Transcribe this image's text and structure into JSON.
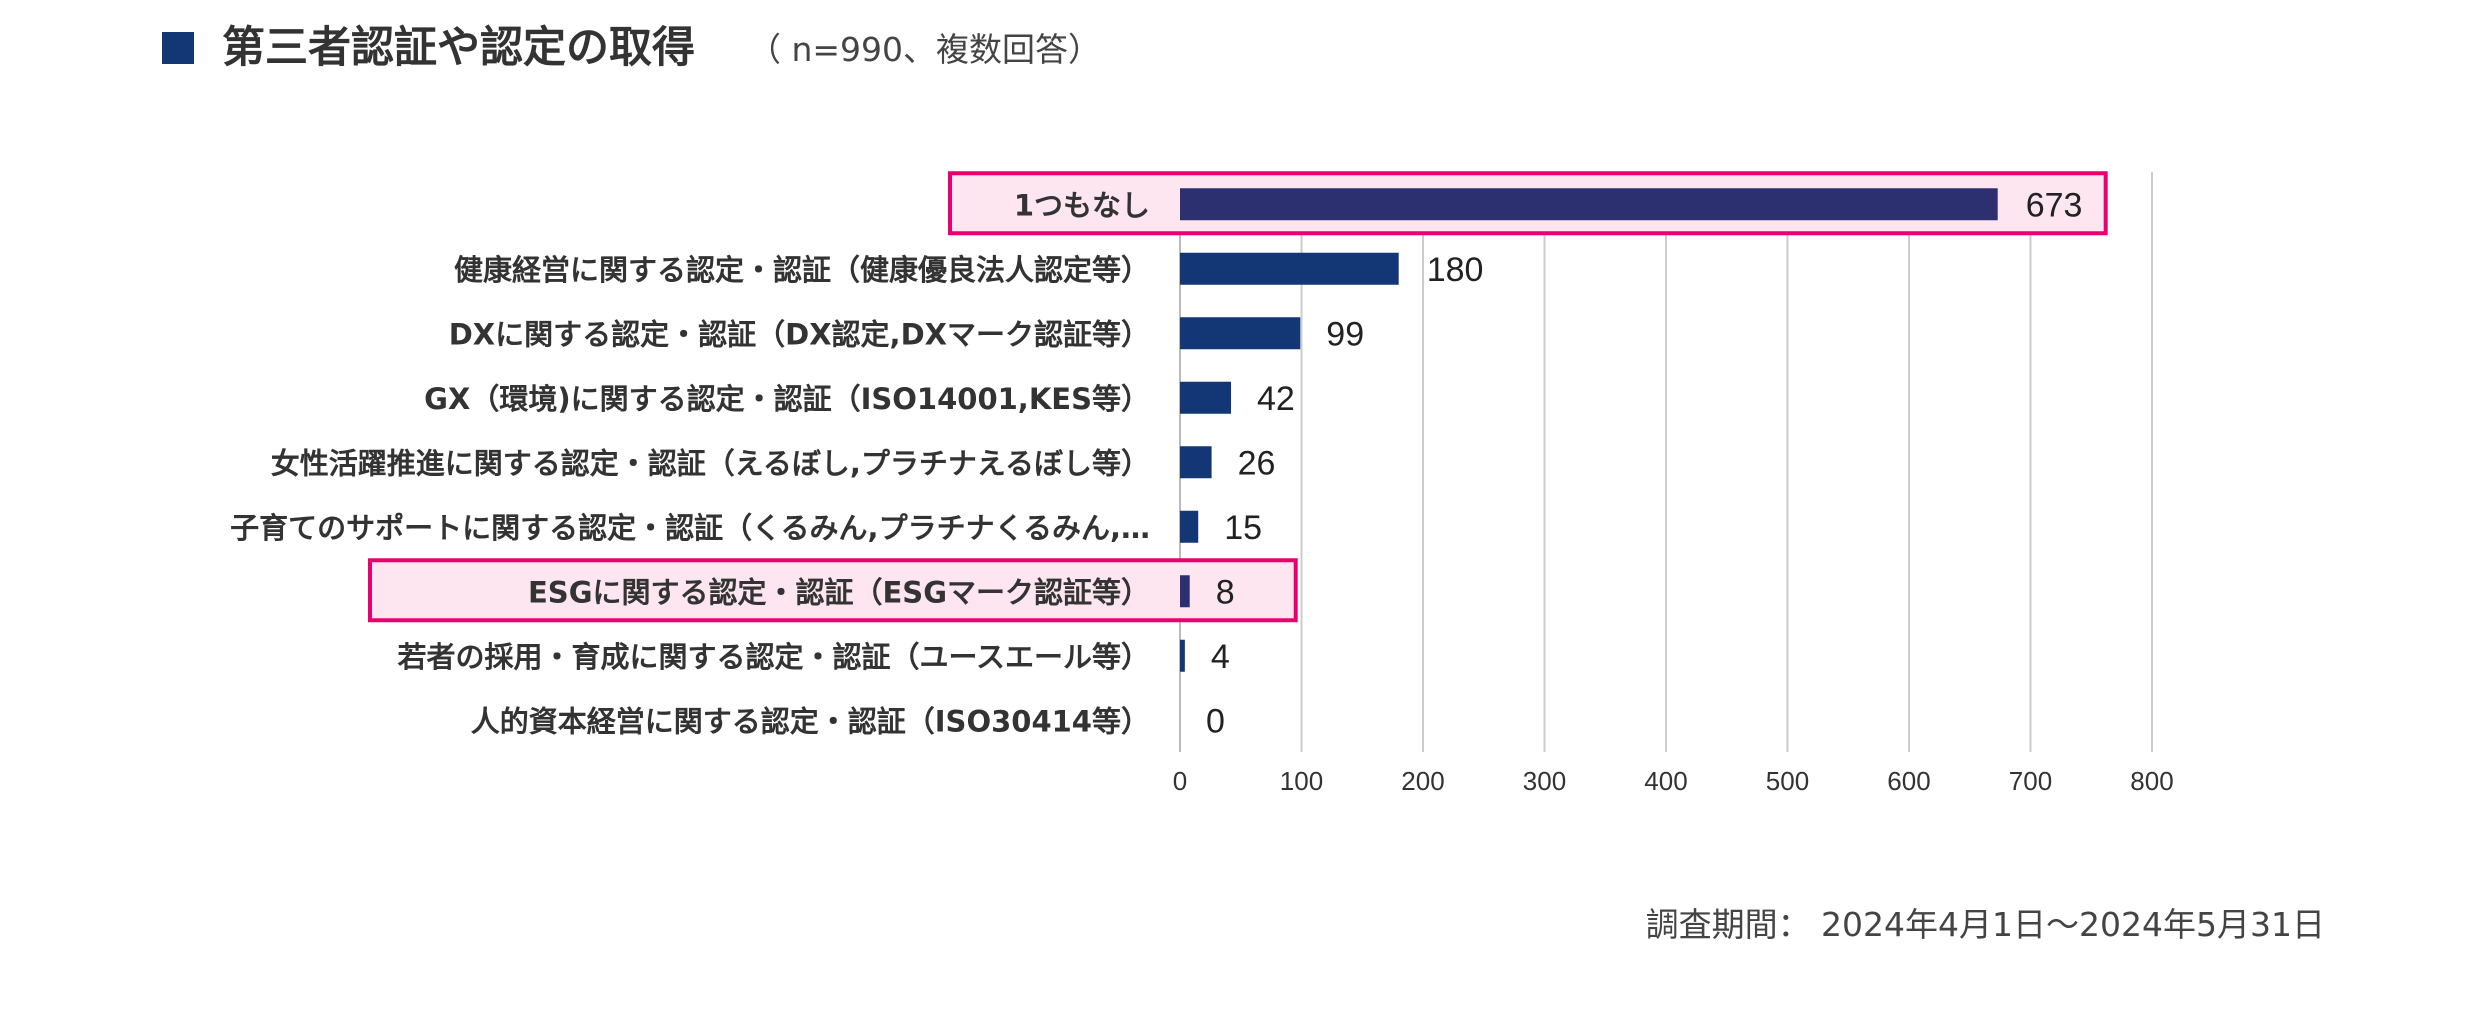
{
  "header": {
    "title": "第三者認証や認定の取得",
    "subtitle": "（ n=990、複数回答）"
  },
  "footer": {
    "survey_period": "調査期間： 2024年4月1日～2024年5月31日"
  },
  "colors": {
    "bar": "#133774",
    "highlight_bar": "#2d3070",
    "highlight_border": "#e8006f",
    "highlight_fill": "#fde6ef",
    "grid": "#cccccc"
  },
  "chart_data": {
    "type": "bar",
    "orientation": "horizontal",
    "title": "第三者認証や認定の取得",
    "categories": [
      "1つもなし",
      "健康経営に関する認定・認証（健康優良法人認定等）",
      "DXに関する認定・認証（DX認定,DXマーク認証等）",
      "GX（環境)に関する認定・認証（ISO14001,KES等）",
      "女性活躍推進に関する認定・認証（えるぼし,プラチナえるぼし等）",
      "子育てのサポートに関する認定・認証（くるみん,プラチナくるみん,…",
      "ESGに関する認定・認証（ESGマーク認証等）",
      "若者の採用・育成に関する認定・認証（ユースエール等）",
      "人的資本経営に関する認定・認証（ISO30414等）"
    ],
    "values": [
      673,
      180,
      99,
      42,
      26,
      15,
      8,
      4,
      0
    ],
    "highlighted": [
      true,
      false,
      false,
      false,
      false,
      false,
      true,
      false,
      false
    ],
    "xlim": [
      0,
      800
    ],
    "xticks": [
      0,
      100,
      200,
      300,
      400,
      500,
      600,
      700,
      800
    ],
    "grid": true,
    "xlabel": "",
    "ylabel": ""
  }
}
